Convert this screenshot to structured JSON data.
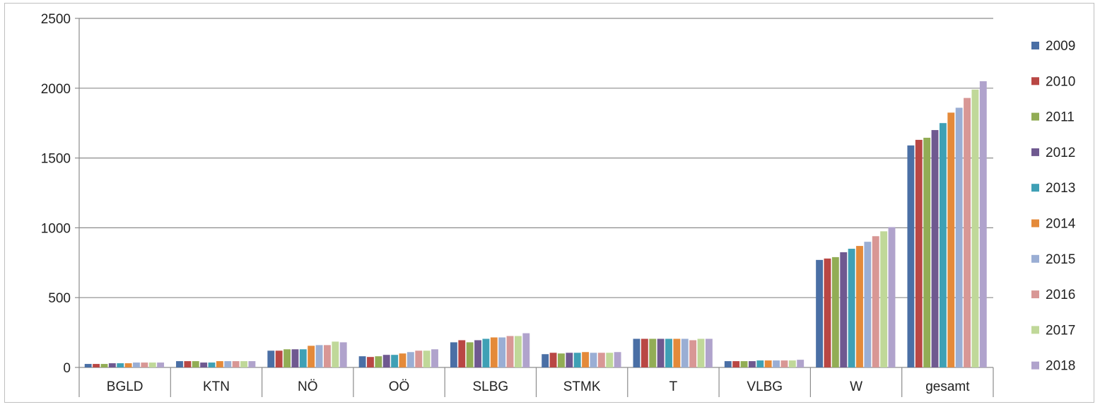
{
  "chart_data": {
    "type": "bar",
    "title": "",
    "xlabel": "",
    "ylabel": "",
    "ylim": [
      0,
      2500
    ],
    "yticks": [
      0,
      500,
      1000,
      1500,
      2000,
      2500
    ],
    "grid": "horizontal",
    "legend_position": "right",
    "categories": [
      "BGLD",
      "KTN",
      "NÖ",
      "OÖ",
      "SLBG",
      "STMK",
      "T",
      "VLBG",
      "W",
      "gesamt"
    ],
    "series": [
      {
        "name": "2009",
        "color": "#4a6fa5",
        "values": [
          25,
          45,
          120,
          80,
          180,
          95,
          205,
          45,
          770,
          1590
        ]
      },
      {
        "name": "2010",
        "color": "#b94744",
        "values": [
          25,
          45,
          120,
          75,
          195,
          105,
          205,
          45,
          780,
          1630
        ]
      },
      {
        "name": "2011",
        "color": "#92ad55",
        "values": [
          25,
          45,
          130,
          80,
          180,
          100,
          205,
          45,
          790,
          1645
        ]
      },
      {
        "name": "2012",
        "color": "#6f5990",
        "values": [
          30,
          35,
          130,
          90,
          195,
          105,
          205,
          45,
          825,
          1700
        ]
      },
      {
        "name": "2013",
        "color": "#3fa0b5",
        "values": [
          30,
          35,
          130,
          90,
          205,
          105,
          205,
          50,
          850,
          1750
        ]
      },
      {
        "name": "2014",
        "color": "#e48a3a",
        "values": [
          30,
          45,
          155,
          100,
          215,
          110,
          205,
          50,
          870,
          1825
        ]
      },
      {
        "name": "2015",
        "color": "#9aaed4",
        "values": [
          35,
          45,
          160,
          110,
          215,
          105,
          205,
          50,
          900,
          1860
        ]
      },
      {
        "name": "2016",
        "color": "#d89795",
        "values": [
          35,
          45,
          160,
          120,
          225,
          105,
          195,
          50,
          940,
          1930
        ]
      },
      {
        "name": "2017",
        "color": "#c0d899",
        "values": [
          35,
          45,
          185,
          120,
          225,
          105,
          205,
          50,
          975,
          1990
        ]
      },
      {
        "name": "2018",
        "color": "#b0a3cc",
        "values": [
          35,
          45,
          180,
          130,
          245,
          110,
          205,
          55,
          1005,
          2050
        ]
      }
    ]
  }
}
